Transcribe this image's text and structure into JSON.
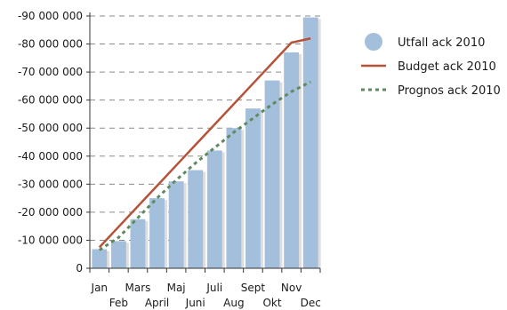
{
  "chart_data": {
    "type": "bar",
    "categories": [
      "Jan",
      "Feb",
      "Mars",
      "April",
      "Maj",
      "Juni",
      "Juli",
      "Aug",
      "Sept",
      "Okt",
      "Nov",
      "Dec"
    ],
    "series": [
      {
        "name": "Utfall ack 2010",
        "kind": "bar",
        "color": "#a3bfdb",
        "values": [
          -6800000,
          -9700000,
          -17500000,
          -25000000,
          -31000000,
          -35000000,
          -42000000,
          -50000000,
          -57000000,
          -67000000,
          -77000000,
          -89500000
        ]
      },
      {
        "name": "Budget ack 2010",
        "kind": "line",
        "color": "#b5533a",
        "values": [
          -7500000,
          -14800000,
          -22100000,
          -29400000,
          -36700000,
          -44000000,
          -51300000,
          -58600000,
          -65900000,
          -73200000,
          -80500000,
          -82000000
        ]
      },
      {
        "name": "Prognos ack 2010",
        "kind": "line",
        "style": "dotted",
        "color": "#5f8a5f",
        "values": [
          -6500000,
          -11000000,
          -18000000,
          -25000000,
          -31500000,
          -37500000,
          -43000000,
          -48500000,
          -53500000,
          -58500000,
          -63000000,
          -66500000
        ]
      }
    ],
    "y_ticks": [
      {
        "value": -90000000,
        "label": "-90 000 000"
      },
      {
        "value": -80000000,
        "label": "-80 000 000"
      },
      {
        "value": -70000000,
        "label": "-70 000 000"
      },
      {
        "value": -60000000,
        "label": "-60 000 000"
      },
      {
        "value": -50000000,
        "label": "-50 000 000"
      },
      {
        "value": -40000000,
        "label": "-40 000 000"
      },
      {
        "value": -30000000,
        "label": "-30 000 000"
      },
      {
        "value": -20000000,
        "label": "-20 000 000"
      },
      {
        "value": -10000000,
        "label": "-10 000 000"
      },
      {
        "value": 0,
        "label": "0"
      }
    ],
    "ylim": [
      -90000000,
      0
    ],
    "y_axis_reversed": true,
    "grid": "horizontal dashed",
    "legend_position": "right",
    "title": "",
    "xlabel": "",
    "ylabel": ""
  }
}
